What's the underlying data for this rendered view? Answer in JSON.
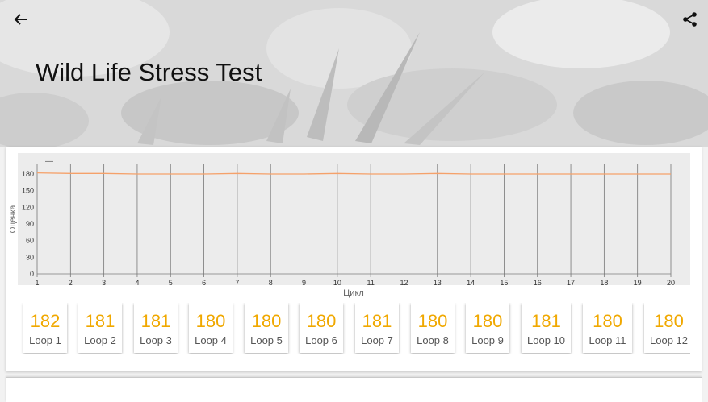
{
  "header": {
    "title": "Wild Life Stress Test",
    "back_icon": "arrow-left-icon",
    "share_icon": "share-icon"
  },
  "chart_data": {
    "type": "line",
    "xlabel": "Цикл",
    "ylabel": "Оценка",
    "x": [
      1,
      2,
      3,
      4,
      5,
      6,
      7,
      8,
      9,
      10,
      11,
      12,
      13,
      14,
      15,
      16,
      17,
      18,
      19,
      20
    ],
    "series": [
      {
        "values": [
          182,
          181,
          181,
          180,
          180,
          180,
          181,
          180,
          180,
          181,
          180,
          180,
          181,
          180,
          180,
          180,
          180,
          180,
          180,
          180
        ],
        "color": "#f5a16a"
      }
    ],
    "xlim": [
      1,
      20
    ],
    "ylim": [
      0,
      180
    ],
    "yticks": [
      "0",
      "30",
      "60",
      "90",
      "120",
      "150",
      "180"
    ],
    "xticks": [
      "1",
      "2",
      "3",
      "4",
      "5",
      "6",
      "7",
      "8",
      "9",
      "10",
      "11",
      "12",
      "13",
      "14",
      "15",
      "16",
      "17",
      "18",
      "19",
      "20"
    ],
    "grid": "vertical",
    "legend_marker": "—"
  },
  "loops": [
    {
      "score": "182",
      "label": "Loop 1"
    },
    {
      "score": "181",
      "label": "Loop 2"
    },
    {
      "score": "181",
      "label": "Loop 3"
    },
    {
      "score": "180",
      "label": "Loop 4"
    },
    {
      "score": "180",
      "label": "Loop 5"
    },
    {
      "score": "180",
      "label": "Loop 6"
    },
    {
      "score": "181",
      "label": "Loop 7"
    },
    {
      "score": "180",
      "label": "Loop 8"
    },
    {
      "score": "180",
      "label": "Loop 9"
    },
    {
      "score": "181",
      "label": "Loop 10"
    },
    {
      "score": "180",
      "label": "Loop 11"
    },
    {
      "score": "180",
      "label": "Loop 12"
    }
  ],
  "colors": {
    "accent": "#f0a800",
    "series": "#f5a16a",
    "plot_bg": "#ececec"
  }
}
